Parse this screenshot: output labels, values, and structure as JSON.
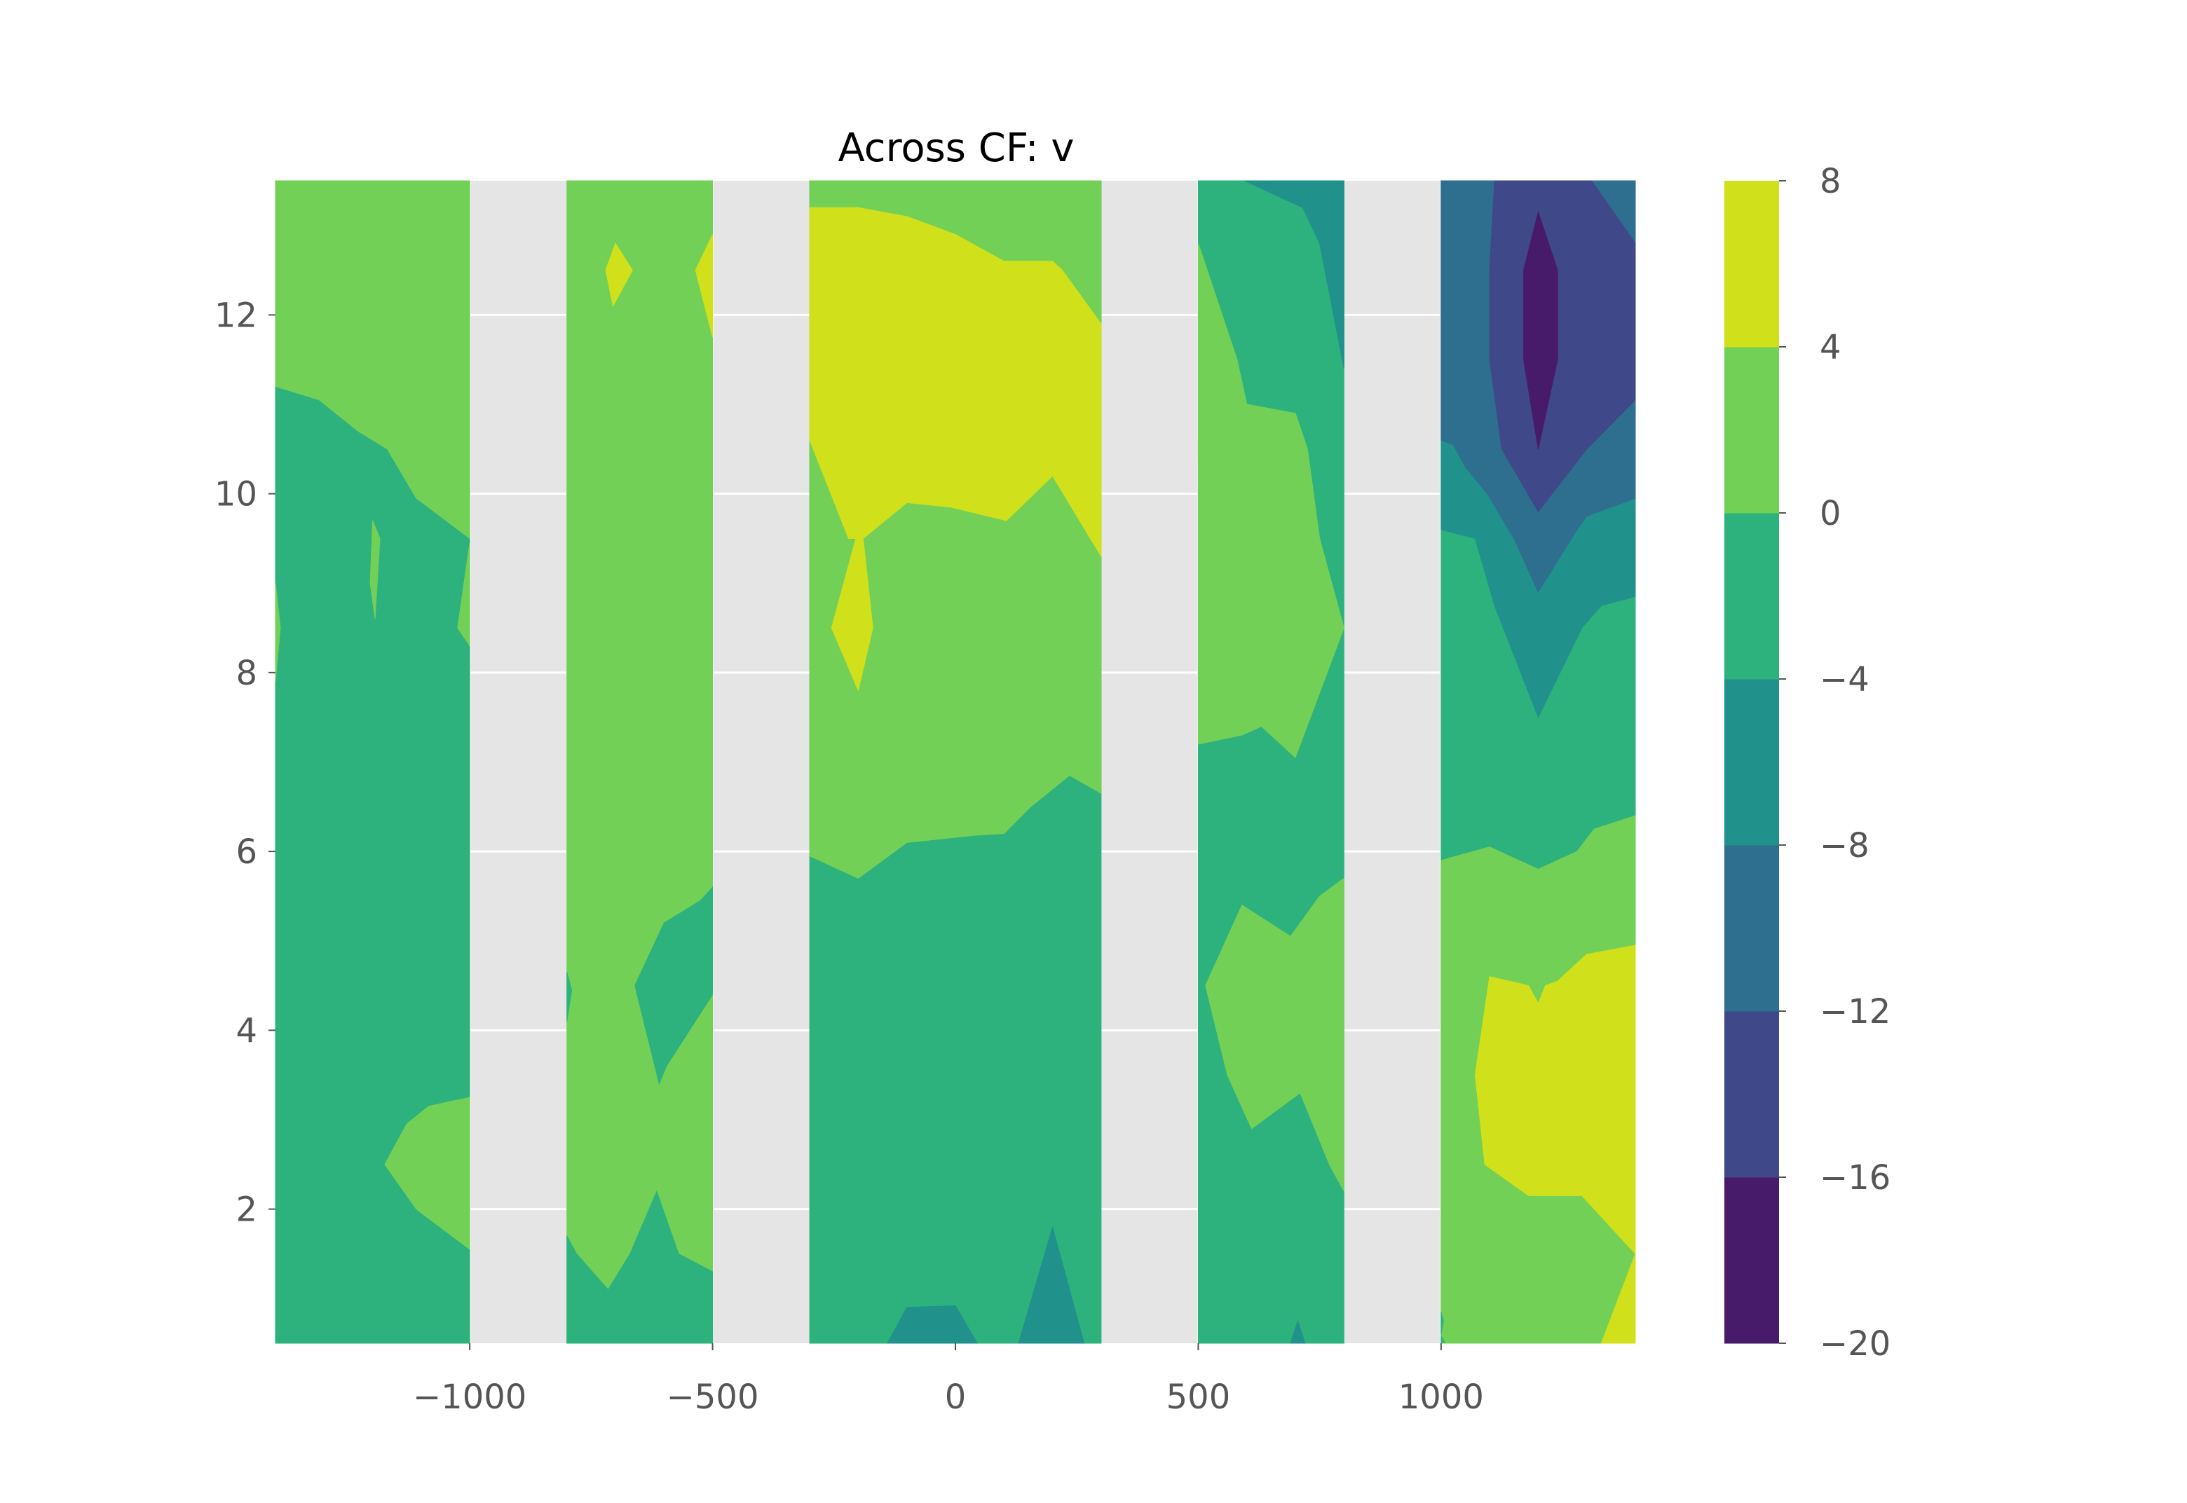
{
  "chart_data": {
    "type": "contour",
    "title": "Across CF: v",
    "xlabel": "",
    "ylabel": "",
    "xlim": [
      -1400,
      1400
    ],
    "ylim": [
      0.5,
      13.5
    ],
    "x_ticks": [
      -1000,
      -500,
      0,
      500,
      1000
    ],
    "x_tick_labels": [
      "−1000",
      "−500",
      "0",
      "500",
      "1000"
    ],
    "y_ticks": [
      2,
      4,
      6,
      8,
      10,
      12
    ],
    "y_tick_labels": [
      "2",
      "4",
      "6",
      "8",
      "10",
      "12"
    ],
    "grid": true,
    "background": "#e5e5e5",
    "colorbar": {
      "levels": [
        -20,
        -16,
        -12,
        -8,
        -4,
        0,
        4,
        8
      ],
      "tick_labels": [
        "−20",
        "−16",
        "−12",
        "−8",
        "−4",
        "0",
        "4",
        "8"
      ],
      "colors": [
        "#471a6a",
        "#3f4889",
        "#2e6e8e",
        "#21918c",
        "#2db27d",
        "#73d056",
        "#d0e11c"
      ]
    },
    "strips": [
      {
        "x": [
          -1400,
          -1000
        ],
        "fills": [
          {
            "level": -4,
            "poly": [
              [
                -1400,
                0.5
              ],
              [
                -1000,
                0.5
              ],
              [
                -1000,
                13.5
              ],
              [
                -1400,
                13.5
              ]
            ]
          },
          {
            "level": 0,
            "poly": [
              [
                -1400,
                11.2
              ],
              [
                -1310,
                11.05
              ],
              [
                -1230,
                10.7
              ],
              [
                -1170,
                10.5
              ],
              [
                -1110,
                9.95
              ],
              [
                -1000,
                9.5
              ],
              [
                -1000,
                13.5
              ],
              [
                -1400,
                13.5
              ]
            ]
          },
          {
            "level": 0,
            "poly": [
              [
                -1400,
                9.0
              ],
              [
                -1390,
                8.5
              ],
              [
                -1400,
                7.9
              ]
            ]
          },
          {
            "level": 0,
            "poly": [
              [
                -1200,
                9.7
              ],
              [
                -1185,
                9.5
              ],
              [
                -1195,
                8.6
              ],
              [
                -1205,
                9.0
              ]
            ]
          },
          {
            "level": 0,
            "poly": [
              [
                -1000,
                9.45
              ],
              [
                -1025,
                8.5
              ],
              [
                -1000,
                8.3
              ]
            ]
          },
          {
            "level": 0,
            "poly": [
              [
                -1000,
                3.25
              ],
              [
                -1085,
                3.15
              ],
              [
                -1130,
                2.95
              ],
              [
                -1175,
                2.5
              ],
              [
                -1110,
                2.0
              ],
              [
                -1000,
                1.55
              ]
            ]
          }
        ]
      },
      {
        "x": [
          -800,
          -500
        ],
        "fills": [
          {
            "level": 0,
            "poly": [
              [
                -800,
                0.5
              ],
              [
                -500,
                0.5
              ],
              [
                -500,
                13.5
              ],
              [
                -800,
                13.5
              ]
            ]
          },
          {
            "level": -4,
            "poly": [
              [
                -800,
                0.5
              ],
              [
                -800,
                1.7
              ],
              [
                -780,
                1.5
              ],
              [
                -715,
                1.1
              ],
              [
                -670,
                1.5
              ],
              [
                -615,
                2.2
              ],
              [
                -570,
                1.5
              ],
              [
                -500,
                1.3
              ],
              [
                -500,
                0.5
              ]
            ]
          },
          {
            "level": -4,
            "poly": [
              [
                -500,
                5.6
              ],
              [
                -525,
                5.45
              ],
              [
                -600,
                5.2
              ],
              [
                -660,
                4.5
              ],
              [
                -610,
                3.4
              ],
              [
                -595,
                3.6
              ],
              [
                -500,
                4.4
              ]
            ]
          },
          {
            "level": -4,
            "poly": [
              [
                -800,
                4.65
              ],
              [
                -790,
                4.45
              ],
              [
                -800,
                4.1
              ]
            ]
          },
          {
            "level": 4,
            "poly": [
              [
                -720,
                12.5
              ],
              [
                -700,
                12.8
              ],
              [
                -665,
                12.5
              ],
              [
                -705,
                12.1
              ]
            ]
          },
          {
            "level": 4,
            "poly": [
              [
                -500,
                12.9
              ],
              [
                -535,
                12.5
              ],
              [
                -500,
                11.75
              ]
            ]
          }
        ]
      },
      {
        "x": [
          -300,
          300
        ],
        "fills": [
          {
            "level": -4,
            "poly": [
              [
                -300,
                0.5
              ],
              [
                300,
                0.5
              ],
              [
                300,
                13.5
              ],
              [
                -300,
                13.5
              ]
            ]
          },
          {
            "level": 0,
            "poly": [
              [
                -300,
                13.5
              ],
              [
                300,
                13.5
              ],
              [
                300,
                6.65
              ],
              [
                235,
                6.85
              ],
              [
                155,
                6.5
              ],
              [
                100,
                6.2
              ],
              [
                40,
                6.18
              ],
              [
                -100,
                6.1
              ],
              [
                -200,
                5.7
              ],
              [
                -300,
                5.95
              ]
            ]
          },
          {
            "level": 4,
            "poly": [
              [
                -300,
                13.2
              ],
              [
                -200,
                13.2
              ],
              [
                -100,
                13.1
              ],
              [
                0,
                12.9
              ],
              [
                100,
                12.6
              ],
              [
                200,
                12.6
              ],
              [
                220,
                12.5
              ],
              [
                300,
                11.9
              ],
              [
                300,
                9.3
              ],
              [
                200,
                10.2
              ],
              [
                105,
                9.7
              ],
              [
                -10,
                9.85
              ],
              [
                -100,
                9.9
              ],
              [
                -190,
                9.5
              ],
              [
                -220,
                9.5
              ],
              [
                -300,
                10.6
              ]
            ]
          },
          {
            "level": 4,
            "poly": [
              [
                -205,
                9.5
              ],
              [
                -255,
                8.5
              ],
              [
                -200,
                7.8
              ],
              [
                -170,
                8.5
              ],
              [
                -190,
                9.5
              ]
            ]
          },
          {
            "level": -8,
            "poly": [
              [
                -140,
                0.5
              ],
              [
                -100,
                0.9
              ],
              [
                0,
                0.92
              ],
              [
                45,
                0.5
              ]
            ]
          },
          {
            "level": -8,
            "poly": [
              [
                130,
                0.5
              ],
              [
                200,
                1.8
              ],
              [
                240,
                1.0
              ],
              [
                265,
                0.5
              ]
            ]
          }
        ]
      },
      {
        "x": [
          500,
          800
        ],
        "fills": [
          {
            "level": -4,
            "poly": [
              [
                500,
                0.5
              ],
              [
                800,
                0.5
              ],
              [
                800,
                13.5
              ],
              [
                500,
                13.5
              ]
            ]
          },
          {
            "level": 0,
            "poly": [
              [
                500,
                12.8
              ],
              [
                580,
                11.5
              ],
              [
                600,
                11.0
              ],
              [
                700,
                10.9
              ],
              [
                725,
                10.5
              ],
              [
                750,
                9.5
              ],
              [
                800,
                8.5
              ],
              [
                700,
                7.05
              ],
              [
                630,
                7.4
              ],
              [
                590,
                7.3
              ],
              [
                500,
                7.2
              ]
            ]
          },
          {
            "level": 0,
            "poly": [
              [
                515,
                4.5
              ],
              [
                590,
                5.4
              ],
              [
                690,
                5.05
              ],
              [
                750,
                5.5
              ],
              [
                800,
                5.7
              ],
              [
                800,
                2.2
              ],
              [
                770,
                2.5
              ],
              [
                710,
                3.3
              ],
              [
                610,
                2.9
              ],
              [
                560,
                3.5
              ]
            ]
          },
          {
            "level": -8,
            "poly": [
              [
                595,
                13.5
              ],
              [
                800,
                13.5
              ],
              [
                800,
                11.4
              ],
              [
                750,
                12.8
              ],
              [
                715,
                13.2
              ]
            ]
          },
          {
            "level": -8,
            "poly": [
              [
                690,
                0.5
              ],
              [
                705,
                0.75
              ],
              [
                720,
                0.5
              ]
            ]
          },
          {
            "level": 0,
            "poly": [
              [
                500,
                10.6
              ],
              [
                505,
                10.5
              ],
              [
                500,
                10.4
              ]
            ]
          }
        ]
      },
      {
        "x": [
          1000,
          1400
        ],
        "fills": [
          {
            "level": -4,
            "poly": [
              [
                1000,
                0.5
              ],
              [
                1400,
                0.5
              ],
              [
                1400,
                13.5
              ],
              [
                1000,
                13.5
              ]
            ]
          },
          {
            "level": -8,
            "poly": [
              [
                1000,
                13.5
              ],
              [
                1400,
                13.5
              ],
              [
                1400,
                8.85
              ],
              [
                1330,
                8.75
              ],
              [
                1290,
                8.5
              ],
              [
                1200,
                7.5
              ],
              [
                1110,
                8.75
              ],
              [
                1070,
                9.5
              ],
              [
                1000,
                9.6
              ]
            ]
          },
          {
            "level": -12,
            "poly": [
              [
                1000,
                13.5
              ],
              [
                1400,
                13.5
              ],
              [
                1400,
                9.95
              ],
              [
                1300,
                9.75
              ],
              [
                1280,
                9.6
              ],
              [
                1200,
                8.9
              ],
              [
                1150,
                9.5
              ],
              [
                1095,
                10.0
              ],
              [
                1050,
                10.3
              ],
              [
                1025,
                10.55
              ],
              [
                1000,
                10.6
              ]
            ]
          },
          {
            "level": -16,
            "poly": [
              [
                1110,
                13.5
              ],
              [
                1310,
                13.5
              ],
              [
                1400,
                12.8
              ],
              [
                1400,
                11.05
              ],
              [
                1300,
                10.5
              ],
              [
                1200,
                9.8
              ],
              [
                1125,
                10.5
              ],
              [
                1100,
                11.5
              ],
              [
                1100,
                12.5
              ]
            ]
          },
          {
            "level": -20,
            "poly": [
              [
                1200,
                13.15
              ],
              [
                1240,
                12.5
              ],
              [
                1240,
                11.5
              ],
              [
                1200,
                10.5
              ],
              [
                1170,
                11.5
              ],
              [
                1170,
                12.5
              ]
            ]
          },
          {
            "level": 0,
            "poly": [
              [
                1000,
                0.5
              ],
              [
                1400,
                0.5
              ],
              [
                1400,
                6.4
              ],
              [
                1315,
                6.25
              ],
              [
                1280,
                6.0
              ],
              [
                1200,
                5.8
              ],
              [
                1100,
                6.05
              ],
              [
                1000,
                5.9
              ],
              [
                1000,
                0.6
              ],
              [
                1010,
                0.5
              ]
            ]
          },
          {
            "level": 4,
            "poly": [
              [
                1330,
                0.5
              ],
              [
                1400,
                0.5
              ],
              [
                1400,
                4.95
              ],
              [
                1300,
                4.85
              ],
              [
                1240,
                4.55
              ],
              [
                1215,
                4.5
              ],
              [
                1200,
                4.3
              ],
              [
                1180,
                4.5
              ],
              [
                1100,
                4.6
              ],
              [
                1070,
                3.5
              ],
              [
                1090,
                2.5
              ],
              [
                1180,
                2.15
              ],
              [
                1290,
                2.15
              ],
              [
                1400,
                1.5
              ]
            ]
          },
          {
            "level": -4,
            "poly": [
              [
                1000,
                0.6
              ],
              [
                1005,
                0.75
              ],
              [
                1000,
                0.85
              ]
            ]
          }
        ]
      }
    ]
  }
}
